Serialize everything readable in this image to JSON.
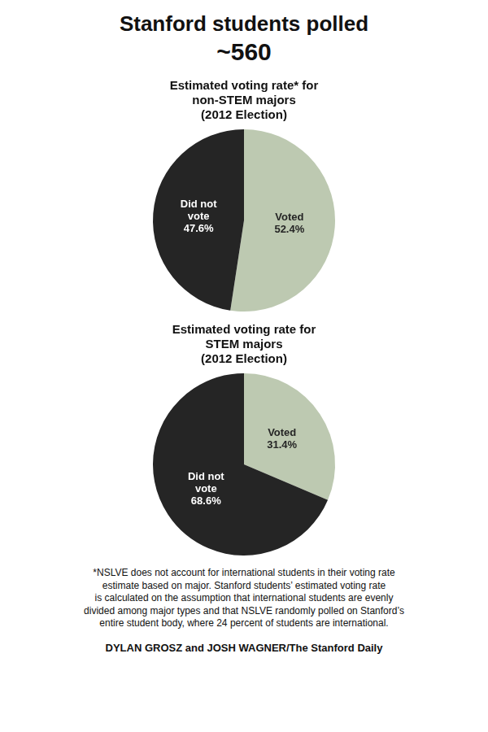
{
  "title": "Stanford students polled",
  "subtitle": "~560",
  "annotations": [
    "*NSLVE does not account for international students in their voting rate\nestimate based on major. Stanford students’ estimated voting rate\nis calculated on the assumption that international students are evenly\ndivided among major types and that NSLVE randomly polled on Stanford’s\nentire student body, where 24 percent of students are international.",
    "DYLAN GROSZ and JOSH WAGNER/The Stanford Daily"
  ],
  "chart_data": [
    {
      "type": "pie",
      "title": "Estimated voting rate* for\nnon-STEM majors\n(2012 Election)",
      "categories": [
        "Voted",
        "Did not\nvote"
      ],
      "values": [
        52.4,
        47.6
      ],
      "value_labels": [
        "52.4%",
        "47.6%"
      ],
      "colors": [
        "#bdc9b1",
        "#252525"
      ],
      "data_labels": true,
      "legend": false
    },
    {
      "type": "pie",
      "title": "Estimated voting rate for\nSTEM majors\n(2012 Election)",
      "categories": [
        "Voted",
        "Did not\nvote"
      ],
      "values": [
        31.4,
        68.6
      ],
      "value_labels": [
        "31.4%",
        "68.6%"
      ],
      "colors": [
        "#bdc9b1",
        "#252525"
      ],
      "data_labels": true,
      "legend": false
    }
  ]
}
